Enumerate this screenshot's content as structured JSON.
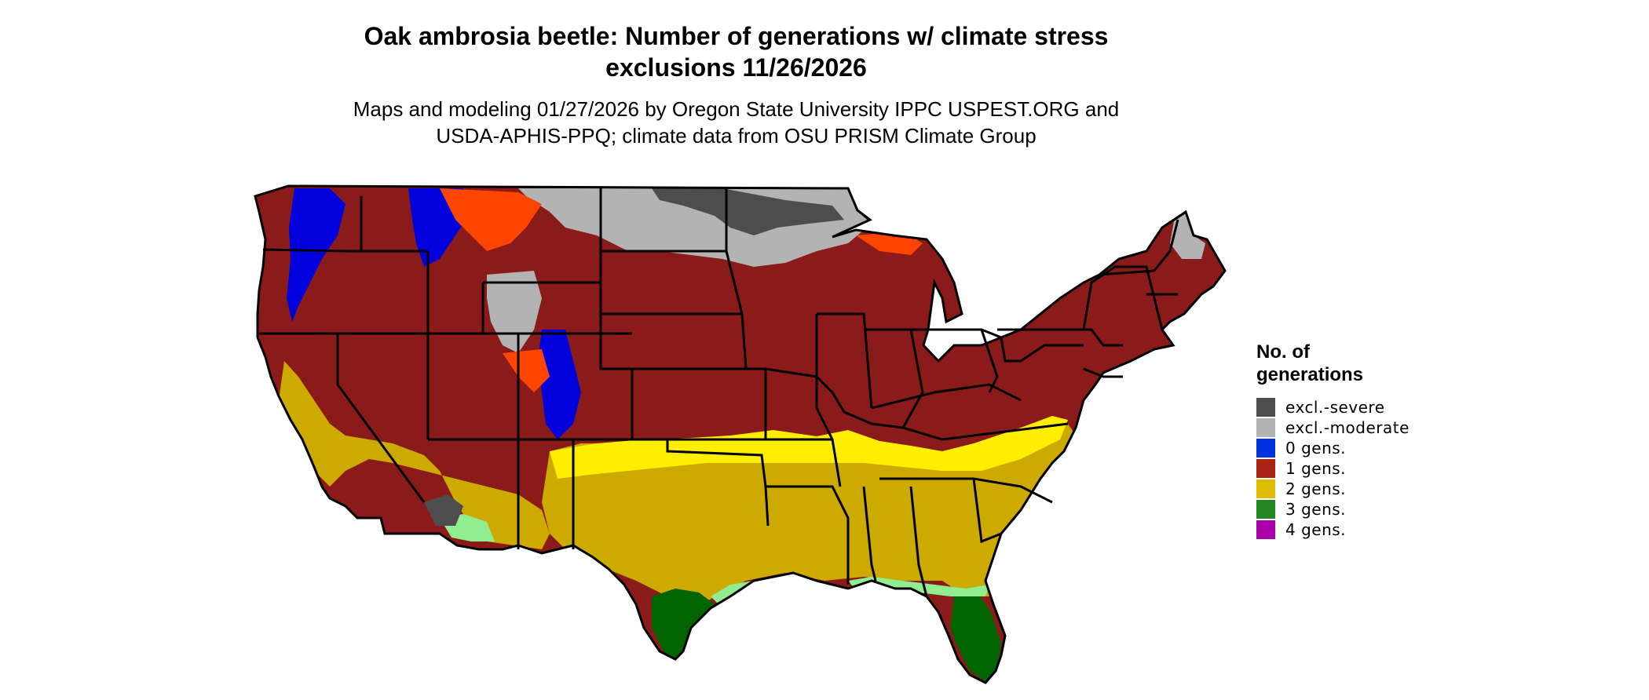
{
  "title_line1": "Oak ambrosia beetle: Number of generations w/ climate stress",
  "title_line2": "exclusions 11/26/2026",
  "subtitle_line1": "Maps and modeling 01/27/2026 by Oregon State University IPPC USPEST.ORG and",
  "subtitle_line2": "USDA-APHIS-PPQ; climate data from OSU PRISM Climate Group",
  "legend": {
    "title_line1": "No. of",
    "title_line2": "generations",
    "items": [
      {
        "label": "excl.-severe",
        "color": "#4d4d4d"
      },
      {
        "label": "excl.-moderate",
        "color": "#b3b3b3"
      },
      {
        "label": "0 gens.",
        "color": "#0033dd"
      },
      {
        "label": "1 gens.",
        "color": "#aa2211"
      },
      {
        "label": "2 gens.",
        "color": "#ddbb00"
      },
      {
        "label": "3 gens.",
        "color": "#228822"
      },
      {
        "label": "4 gens.",
        "color": "#aa00aa"
      }
    ]
  },
  "map_colors": {
    "one_gen_dark": "#8b1a1a",
    "orange_red": "#ff4500",
    "two_gen_gold": "#ccaa00",
    "bright_yellow": "#ffee00",
    "three_gen_dark_green": "#006400",
    "light_green": "#90ee90",
    "zero_gen_blue": "#0000dd",
    "excl_moderate": "#b3b3b3",
    "excl_severe": "#4d4d4d",
    "border": "#000000"
  }
}
